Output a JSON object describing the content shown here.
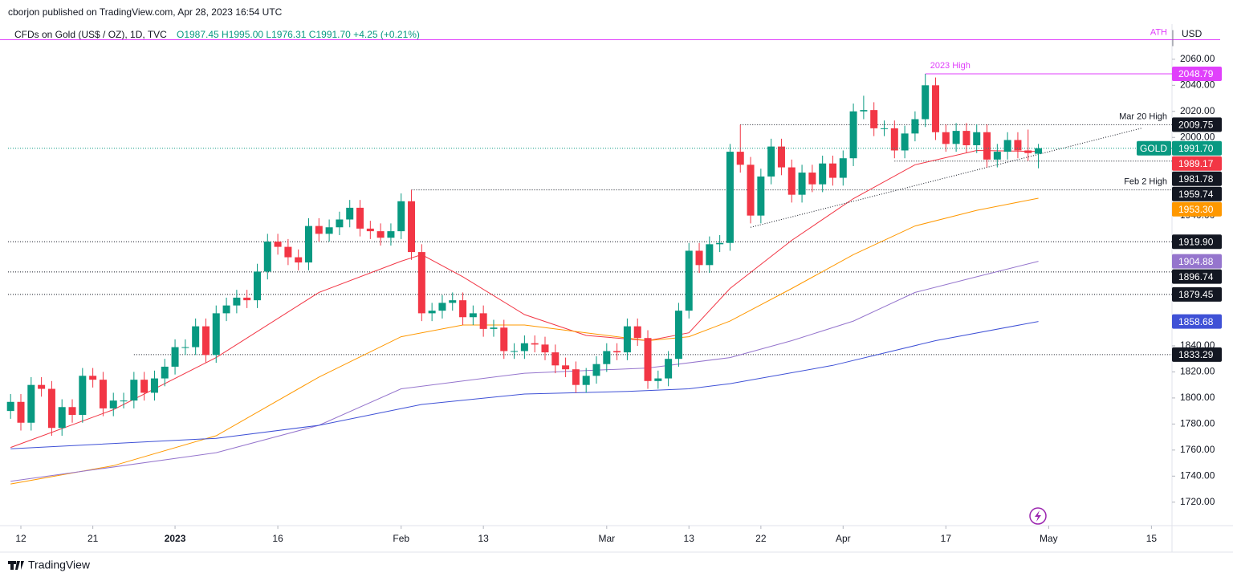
{
  "header": "cborjon published on TradingView.com, Apr 28, 2023 16:54 UTC",
  "footer": "TradingView",
  "chart_data": {
    "type": "candlestick",
    "symbol": "CFDs on Gold (US$ / OZ), 1D, TVC",
    "ohlc_text": "O1987.45 H1995.00 L1976.31 C1991.70 +4.25 (+0.21%)",
    "currency": "USD",
    "ticker": "GOLD",
    "up_color": "#089981",
    "down_color": "#f23645",
    "open": [
      1790,
      1797,
      1781,
      1810,
      1807,
      1777,
      1793,
      1787,
      1817,
      1814,
      1792,
      1798,
      1798,
      1814,
      1804,
      1815,
      1824,
      1839,
      1839,
      1855,
      1833,
      1865,
      1871,
      1877,
      1875,
      1897,
      1920,
      1916,
      1908,
      1904,
      1932,
      1926,
      1931,
      1937,
      1946,
      1930,
      1928,
      1923,
      1928,
      1951,
      1912,
      1865,
      1867,
      1873,
      1875,
      1862,
      1865,
      1853,
      1854,
      1836,
      1836,
      1842,
      1841,
      1835,
      1825,
      1822,
      1810,
      1817,
      1826,
      1836,
      1835,
      1855,
      1846,
      1813,
      1815,
      1830,
      1867,
      1913,
      1902,
      1918,
      1919,
      1989,
      1979,
      1940,
      1970,
      1993,
      1977,
      1956,
      1973,
      1964,
      1980,
      1969,
      1984,
      2020,
      2021,
      2007,
      2007,
      1990,
      2003,
      2014,
      2040,
      2004,
      1995,
      2005,
      1994,
      2004,
      1983,
      1989,
      1998,
      1990,
      1987.45
    ],
    "high": [
      1803,
      1803,
      1816,
      1816,
      1813,
      1799,
      1799,
      1823,
      1823,
      1820,
      1804,
      1804,
      1820,
      1820,
      1821,
      1830,
      1845,
      1845,
      1861,
      1861,
      1871,
      1877,
      1883,
      1883,
      1903,
      1926,
      1926,
      1922,
      1914,
      1938,
      1938,
      1937,
      1943,
      1952,
      1952,
      1936,
      1934,
      1934,
      1957,
      1959.74,
      1918,
      1873,
      1879,
      1881,
      1881,
      1871,
      1871,
      1860,
      1860,
      1842,
      1848,
      1848,
      1847,
      1841,
      1831,
      1828,
      1823,
      1832,
      1842,
      1842,
      1861,
      1861,
      1852,
      1821,
      1836,
      1873,
      1919,
      1919,
      1924,
      1925,
      1995,
      2009.75,
      1985,
      1976,
      1999,
      1999,
      1983,
      1979,
      1979,
      1986,
      1986,
      1990,
      2026,
      2032,
      2027,
      2013,
      2013,
      2009,
      2020,
      2048.79,
      2046,
      2010,
      2011,
      2011,
      2010,
      2010,
      1995,
      2004,
      2004,
      2006,
      1995
    ],
    "low": [
      1784,
      1775,
      1775,
      1801,
      1771,
      1771,
      1781,
      1781,
      1808,
      1786,
      1786,
      1792,
      1792,
      1798,
      1798,
      1809,
      1818,
      1833,
      1833,
      1827,
      1827,
      1859,
      1865,
      1869,
      1869,
      1891,
      1910,
      1902,
      1898,
      1898,
      1920,
      1920,
      1925,
      1931,
      1924,
      1922,
      1917,
      1917,
      1922,
      1906,
      1859,
      1859,
      1861,
      1867,
      1856,
      1856,
      1847,
      1847,
      1830,
      1830,
      1830,
      1835,
      1829,
      1819,
      1816,
      1804,
      1804,
      1811,
      1820,
      1829,
      1829,
      1840,
      1807,
      1807,
      1809,
      1824,
      1861,
      1896,
      1896,
      1912,
      1913,
      1973,
      1934,
      1934,
      1964,
      1971,
      1950,
      1950,
      1958,
      1958,
      1963,
      1963,
      1978,
      2014,
      2001,
      2001,
      1984,
      1984,
      1997,
      2008,
      1998,
      1989,
      1989,
      1988,
      1988,
      1977,
      1977,
      1983,
      1984,
      1982,
      1976.31
    ],
    "close": [
      1797,
      1781,
      1810,
      1807,
      1777,
      1793,
      1787,
      1817,
      1814,
      1792,
      1798,
      1798,
      1814,
      1804,
      1815,
      1824,
      1839,
      1839,
      1855,
      1833,
      1865,
      1871,
      1877,
      1875,
      1897,
      1920,
      1916,
      1908,
      1904,
      1932,
      1926,
      1931,
      1937,
      1946,
      1930,
      1928,
      1923,
      1928,
      1951,
      1912,
      1865,
      1867,
      1873,
      1875,
      1862,
      1865,
      1853,
      1854,
      1836,
      1836,
      1842,
      1841,
      1835,
      1825,
      1822,
      1810,
      1817,
      1826,
      1836,
      1835,
      1855,
      1846,
      1813,
      1815,
      1830,
      1867,
      1913,
      1902,
      1918,
      1919,
      1989,
      1979,
      1940,
      1970,
      1993,
      1977,
      1956,
      1973,
      1964,
      1980,
      1969,
      1984,
      2020,
      2021,
      2007,
      2007,
      1990,
      2003,
      2014,
      2040,
      2004,
      1995,
      2005,
      1994,
      2004,
      1983,
      1989,
      1998,
      1990,
      1988,
      1991.7
    ],
    "last_price": {
      "value": 1991.7,
      "label": "1991.70"
    },
    "moving_averages": [
      {
        "color": "#f23645",
        "x": [
          0,
          10,
          20,
          30,
          38,
          40,
          44,
          50,
          56,
          62,
          66,
          70,
          76,
          82,
          88,
          94,
          100
        ],
        "values": [
          1762,
          1791,
          1831,
          1881,
          1905,
          1910,
          1893,
          1864,
          1848,
          1844,
          1850,
          1884,
          1921,
          1953,
          1979,
          1990,
          1989.17
        ],
        "end_label": "1989.17"
      },
      {
        "color": "#ff9800",
        "x": [
          0,
          10,
          20,
          30,
          38,
          44,
          50,
          56,
          62,
          66,
          70,
          76,
          82,
          88,
          94,
          100
        ],
        "values": [
          1734,
          1748,
          1771,
          1816,
          1847,
          1856,
          1856,
          1850,
          1844,
          1847,
          1859,
          1884,
          1910,
          1932,
          1944,
          1953.3
        ],
        "end_label": "1953.30"
      },
      {
        "color": "#9575cd",
        "x": [
          0,
          20,
          30,
          38,
          44,
          50,
          56,
          62,
          70,
          76,
          82,
          88,
          94,
          100
        ],
        "values": [
          1736,
          1758,
          1779,
          1807,
          1813,
          1819,
          1821,
          1823,
          1831,
          1844,
          1859,
          1881,
          1893,
          1904.88
        ],
        "end_label": "1904.88"
      },
      {
        "color": "#3f51d6",
        "x": [
          0,
          20,
          30,
          40,
          50,
          60,
          66,
          70,
          80,
          90,
          100
        ],
        "values": [
          1761,
          1769,
          1779,
          1795,
          1803,
          1805,
          1807,
          1811,
          1825,
          1844,
          1858.68
        ],
        "end_label": "1858.68"
      }
    ],
    "ath": {
      "value": 2075,
      "text": "ATH",
      "color": "#e040fb"
    },
    "levels": [
      {
        "value": 2048.79,
        "label": "2048.79",
        "text": "2023 High",
        "start": 89,
        "color": "#e040fb"
      },
      {
        "value": 2009.75,
        "label": "2009.75",
        "text": "Mar 20 High",
        "start": 71
      },
      {
        "value": 1981.78,
        "label": "1981.78",
        "start": 86
      },
      {
        "value": 1959.74,
        "label": "1959.74",
        "text": "Feb 2 High",
        "start": 39
      },
      {
        "value": 1919.9,
        "label": "1919.90"
      },
      {
        "value": 1896.74,
        "label": "1896.74"
      },
      {
        "value": 1879.45,
        "label": "1879.45"
      },
      {
        "value": 1833.29,
        "label": "1833.29",
        "start": 12
      }
    ],
    "trendline": {
      "x": [
        72,
        110
      ],
      "values": [
        1931,
        2007
      ]
    },
    "xlim": [
      -0.25,
      113
    ],
    "ylim": [
      1702,
      2087
    ],
    "xticks": [
      {
        "value": 1,
        "label": "12"
      },
      {
        "value": 8,
        "label": "21"
      },
      {
        "value": 16,
        "label": "2023"
      },
      {
        "value": 26,
        "label": "16"
      },
      {
        "value": 38,
        "label": "Feb"
      },
      {
        "value": 46,
        "label": "13"
      },
      {
        "value": 58,
        "label": "Mar"
      },
      {
        "value": 66,
        "label": "13"
      },
      {
        "value": 73,
        "label": "22"
      },
      {
        "value": 81,
        "label": "Apr"
      },
      {
        "value": 91,
        "label": "17"
      },
      {
        "value": 101,
        "label": "May"
      },
      {
        "value": 111,
        "label": "15"
      }
    ],
    "yticks": [
      {
        "value": 1720,
        "label": "1720.00"
      },
      {
        "value": 1740,
        "label": "1740.00"
      },
      {
        "value": 1760,
        "label": "1760.00"
      },
      {
        "value": 1780,
        "label": "1780.00"
      },
      {
        "value": 1800,
        "label": "1800.00"
      },
      {
        "value": 1820,
        "label": "1820.00"
      },
      {
        "value": 1840,
        "label": "1840.00"
      },
      {
        "value": 1940,
        "label": "1940.00"
      },
      {
        "value": 2000,
        "label": "2000.00"
      },
      {
        "value": 2020,
        "label": "2020.00"
      },
      {
        "value": 2040,
        "label": "2040.00"
      },
      {
        "value": 2060,
        "label": "2060.00"
      }
    ]
  }
}
